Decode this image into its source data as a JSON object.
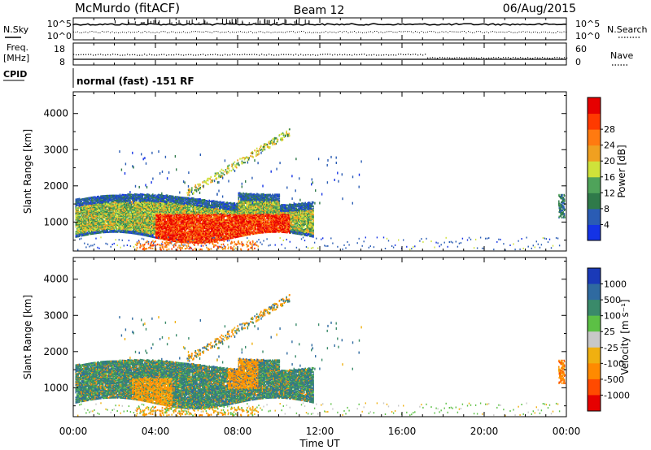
{
  "header": {
    "station": "McMurdo (fitACF)",
    "beam": "Beam 12",
    "date": "06/Aug/2015"
  },
  "meta_panel": {
    "nsky_label": "N.Sky",
    "nsearch_label": "N.Search",
    "freq_label": "Freq.",
    "freq_unit": "[MHz]",
    "nave_label": "Nave",
    "cpid_label": "CPID",
    "cpid_value": "normal (fast) -151 RF",
    "noise_ticks": [
      "10^5",
      "10^0"
    ],
    "freq_ticks": [
      "18",
      "8"
    ],
    "nave_ticks": [
      "60",
      "0"
    ]
  },
  "chart_data": [
    {
      "type": "heatmap",
      "panel": "power",
      "ylabel": "Slant Range [km]",
      "yticks": [
        1000,
        2000,
        3000,
        4000
      ],
      "ylim": [
        200,
        4600
      ],
      "xlim": [
        0,
        24
      ],
      "colorbar_label": "Power [dB]",
      "colorbar_ticks": [
        "4",
        "8",
        "12",
        "16",
        "20",
        "24",
        "28"
      ],
      "colorbar_colors": [
        "#1433e6",
        "#2a5cb4",
        "#2f7a4a",
        "#4fa35a",
        "#cfe23a",
        "#f0a020",
        "#ff7a10",
        "#ff3a00",
        "#e60000"
      ]
    },
    {
      "type": "heatmap",
      "panel": "velocity",
      "ylabel": "Slant Range [km]",
      "yticks": [
        1000,
        2000,
        3000,
        4000
      ],
      "ylim": [
        200,
        4600
      ],
      "xlim": [
        0,
        24
      ],
      "colorbar_label": "Velocity [m s⁻¹]",
      "colorbar_ticks": [
        "1000",
        "500",
        "100",
        "25",
        "-25",
        "-100",
        "-500",
        "-1000"
      ],
      "colorbar_colors": [
        "#1a3ab8",
        "#2f6aa0",
        "#3a8a6a",
        "#5cc045",
        "#c8c8c8",
        "#f0b010",
        "#ff8a00",
        "#ff4a00",
        "#e60000"
      ]
    }
  ],
  "xaxis": {
    "ticks": [
      "00:00",
      "04:00",
      "08:00",
      "12:00",
      "16:00",
      "20:00",
      "00:00"
    ],
    "label": "Time UT"
  }
}
